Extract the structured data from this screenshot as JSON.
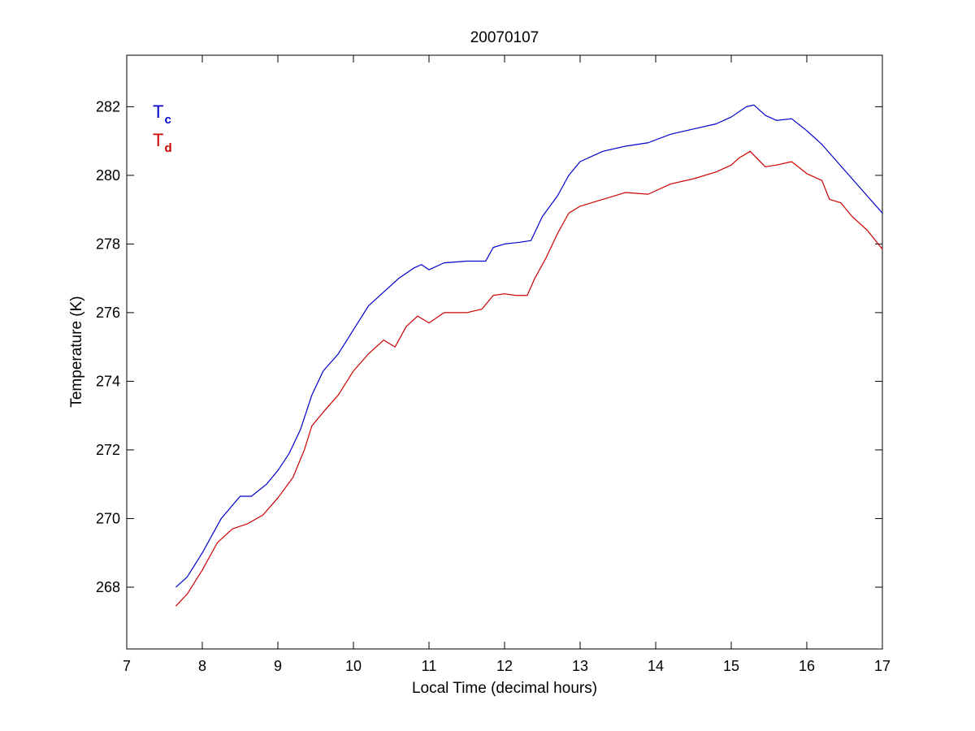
{
  "chart_data": {
    "type": "line",
    "title": "20070107",
    "xlabel": "Local Time (decimal hours)",
    "ylabel": "Temperature (K)",
    "xlim": [
      7,
      17
    ],
    "ylim": [
      266.2,
      283.5
    ],
    "xticks": [
      7,
      8,
      9,
      10,
      11,
      12,
      13,
      14,
      15,
      16,
      17
    ],
    "yticks": [
      268,
      270,
      272,
      274,
      276,
      278,
      280,
      282
    ],
    "xtick_labels": [
      "7",
      "8",
      "9",
      "10",
      "11",
      "12",
      "13",
      "14",
      "15",
      "16",
      "17"
    ],
    "ytick_labels": [
      "268",
      "270",
      "272",
      "274",
      "276",
      "278",
      "280",
      "282"
    ],
    "grid": false,
    "legend_placement": "top-left",
    "series": [
      {
        "name": "Tc",
        "legend_main": "T",
        "legend_sub": "c",
        "color": "#0000cc",
        "points": [
          [
            7.65,
            268.0
          ],
          [
            7.8,
            268.3
          ],
          [
            8.0,
            269.0
          ],
          [
            8.25,
            270.0
          ],
          [
            8.5,
            270.65
          ],
          [
            8.65,
            270.65
          ],
          [
            8.85,
            271.0
          ],
          [
            9.0,
            271.4
          ],
          [
            9.15,
            271.9
          ],
          [
            9.3,
            272.6
          ],
          [
            9.45,
            273.6
          ],
          [
            9.6,
            274.3
          ],
          [
            9.8,
            274.8
          ],
          [
            10.0,
            275.5
          ],
          [
            10.2,
            276.2
          ],
          [
            10.4,
            276.6
          ],
          [
            10.6,
            277.0
          ],
          [
            10.8,
            277.3
          ],
          [
            10.9,
            277.4
          ],
          [
            11.0,
            277.25
          ],
          [
            11.2,
            277.45
          ],
          [
            11.5,
            277.5
          ],
          [
            11.75,
            277.5
          ],
          [
            11.85,
            277.9
          ],
          [
            12.0,
            278.0
          ],
          [
            12.2,
            278.05
          ],
          [
            12.35,
            278.1
          ],
          [
            12.5,
            278.8
          ],
          [
            12.7,
            279.4
          ],
          [
            12.85,
            280.0
          ],
          [
            13.0,
            280.4
          ],
          [
            13.3,
            280.7
          ],
          [
            13.6,
            280.85
          ],
          [
            13.9,
            280.95
          ],
          [
            14.2,
            281.2
          ],
          [
            14.5,
            281.35
          ],
          [
            14.8,
            281.5
          ],
          [
            15.0,
            281.7
          ],
          [
            15.2,
            282.0
          ],
          [
            15.3,
            282.05
          ],
          [
            15.45,
            281.75
          ],
          [
            15.6,
            281.6
          ],
          [
            15.8,
            281.65
          ],
          [
            16.0,
            281.3
          ],
          [
            16.2,
            280.9
          ],
          [
            16.4,
            280.4
          ],
          [
            16.6,
            279.9
          ],
          [
            16.8,
            279.4
          ],
          [
            17.0,
            278.9
          ]
        ]
      },
      {
        "name": "Td",
        "legend_main": "T",
        "legend_sub": "d",
        "color": "#cc0000",
        "points": [
          [
            7.65,
            267.45
          ],
          [
            7.8,
            267.8
          ],
          [
            8.0,
            268.5
          ],
          [
            8.2,
            269.3
          ],
          [
            8.4,
            269.7
          ],
          [
            8.6,
            269.85
          ],
          [
            8.8,
            270.1
          ],
          [
            9.0,
            270.6
          ],
          [
            9.2,
            271.2
          ],
          [
            9.35,
            272.0
          ],
          [
            9.45,
            272.7
          ],
          [
            9.6,
            273.1
          ],
          [
            9.8,
            273.6
          ],
          [
            10.0,
            274.3
          ],
          [
            10.2,
            274.8
          ],
          [
            10.4,
            275.2
          ],
          [
            10.55,
            275.0
          ],
          [
            10.7,
            275.6
          ],
          [
            10.85,
            275.9
          ],
          [
            11.0,
            275.7
          ],
          [
            11.2,
            276.0
          ],
          [
            11.5,
            276.0
          ],
          [
            11.7,
            276.1
          ],
          [
            11.85,
            276.5
          ],
          [
            12.0,
            276.55
          ],
          [
            12.15,
            276.5
          ],
          [
            12.3,
            276.5
          ],
          [
            12.4,
            277.0
          ],
          [
            12.55,
            277.6
          ],
          [
            12.7,
            278.3
          ],
          [
            12.85,
            278.9
          ],
          [
            13.0,
            279.1
          ],
          [
            13.3,
            279.3
          ],
          [
            13.6,
            279.5
          ],
          [
            13.9,
            279.45
          ],
          [
            14.2,
            279.75
          ],
          [
            14.5,
            279.9
          ],
          [
            14.8,
            280.1
          ],
          [
            15.0,
            280.3
          ],
          [
            15.1,
            280.5
          ],
          [
            15.25,
            280.7
          ],
          [
            15.45,
            280.25
          ],
          [
            15.6,
            280.3
          ],
          [
            15.8,
            280.4
          ],
          [
            16.0,
            280.05
          ],
          [
            16.2,
            279.85
          ],
          [
            16.3,
            279.3
          ],
          [
            16.45,
            279.2
          ],
          [
            16.6,
            278.8
          ],
          [
            16.8,
            278.4
          ],
          [
            17.0,
            277.85
          ]
        ]
      }
    ]
  }
}
